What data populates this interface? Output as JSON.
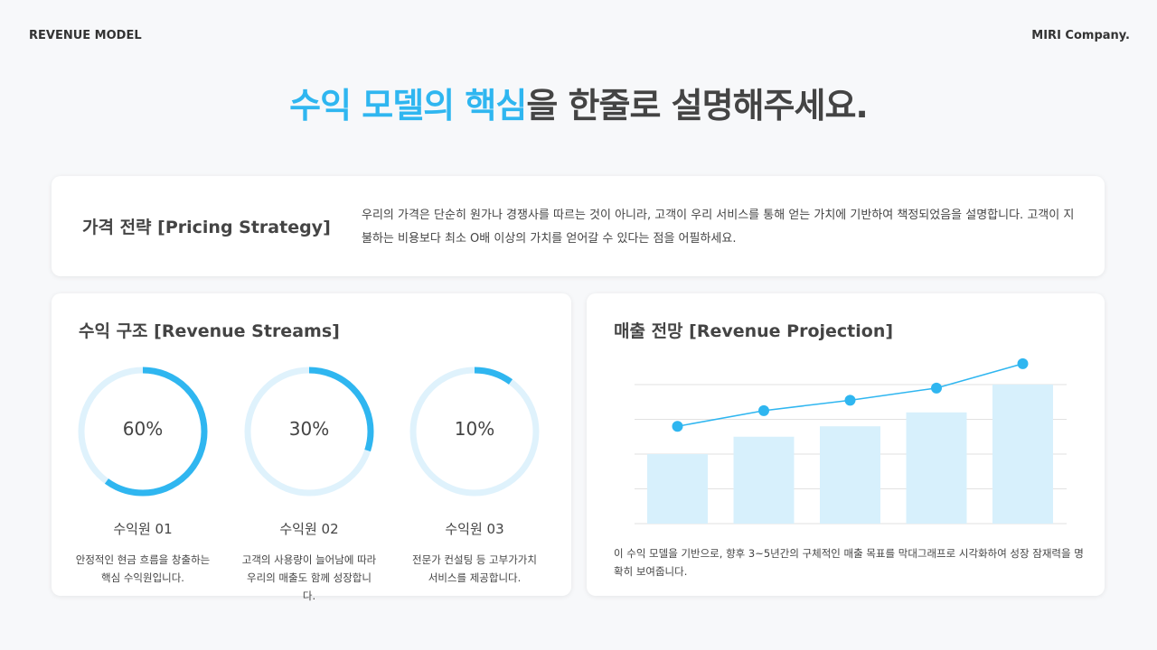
{
  "header": {
    "left": "REVENUE MODEL",
    "right": "MIRI Company."
  },
  "title": {
    "accent": "수익 모델의 핵심",
    "rest": "을 한줄로 설명해주세요."
  },
  "pricing": {
    "heading": "가격 전략 [Pricing Strategy]",
    "body": "우리의 가격은 단순히 원가나 경쟁사를 따르는 것이 아니라, 고객이 우리 서비스를 통해 얻는 가치에 기반하여 책정되었음을 설명합니다. 고객이 지불하는 비용보다 최소 O배 이상의 가치를 얻어갈 수 있다는 점을 어필하세요."
  },
  "streams": {
    "heading": "수익 구조 [Revenue Streams]",
    "items": [
      {
        "pct_label": "60%",
        "share": 60,
        "name": "수익원 01",
        "desc": "안정적인 현금 흐름을 창출하는 핵심 수익원입니다."
      },
      {
        "pct_label": "30%",
        "share": 30,
        "name": "수익원 02",
        "desc": "고객의 사용량이 늘어남에 따라 우리의 매출도 함께 성장합니다."
      },
      {
        "pct_label": "10%",
        "share": 10,
        "name": "수익원 03",
        "desc": "전문가 컨설팅 등 고부가가치 서비스를 제공합니다."
      }
    ]
  },
  "projection": {
    "heading": "매출 전망 [Revenue Projection]",
    "body": "이 수익 모델을 기반으로, 향후 3~5년간의 구체적인 매출 목표를 막대그래프로 시각화하여 성장 잠재력을 명확히 보여줍니다."
  },
  "colors": {
    "accent": "#2fb6f0",
    "track": "#dff2fc",
    "bar": "#d7f0fc",
    "grid": "#e2e2e2"
  },
  "chart_data": {
    "type": "bar",
    "categories": [
      "1",
      "2",
      "3",
      "4",
      "5"
    ],
    "series": [
      {
        "type": "bar",
        "values": [
          2,
          2.5,
          2.8,
          3.2,
          4
        ]
      },
      {
        "type": "line",
        "values": [
          2.8,
          3.25,
          3.55,
          3.9,
          4.6
        ]
      }
    ],
    "ylim": [
      0,
      4
    ],
    "grid": true,
    "axis_labels_shown": false
  }
}
